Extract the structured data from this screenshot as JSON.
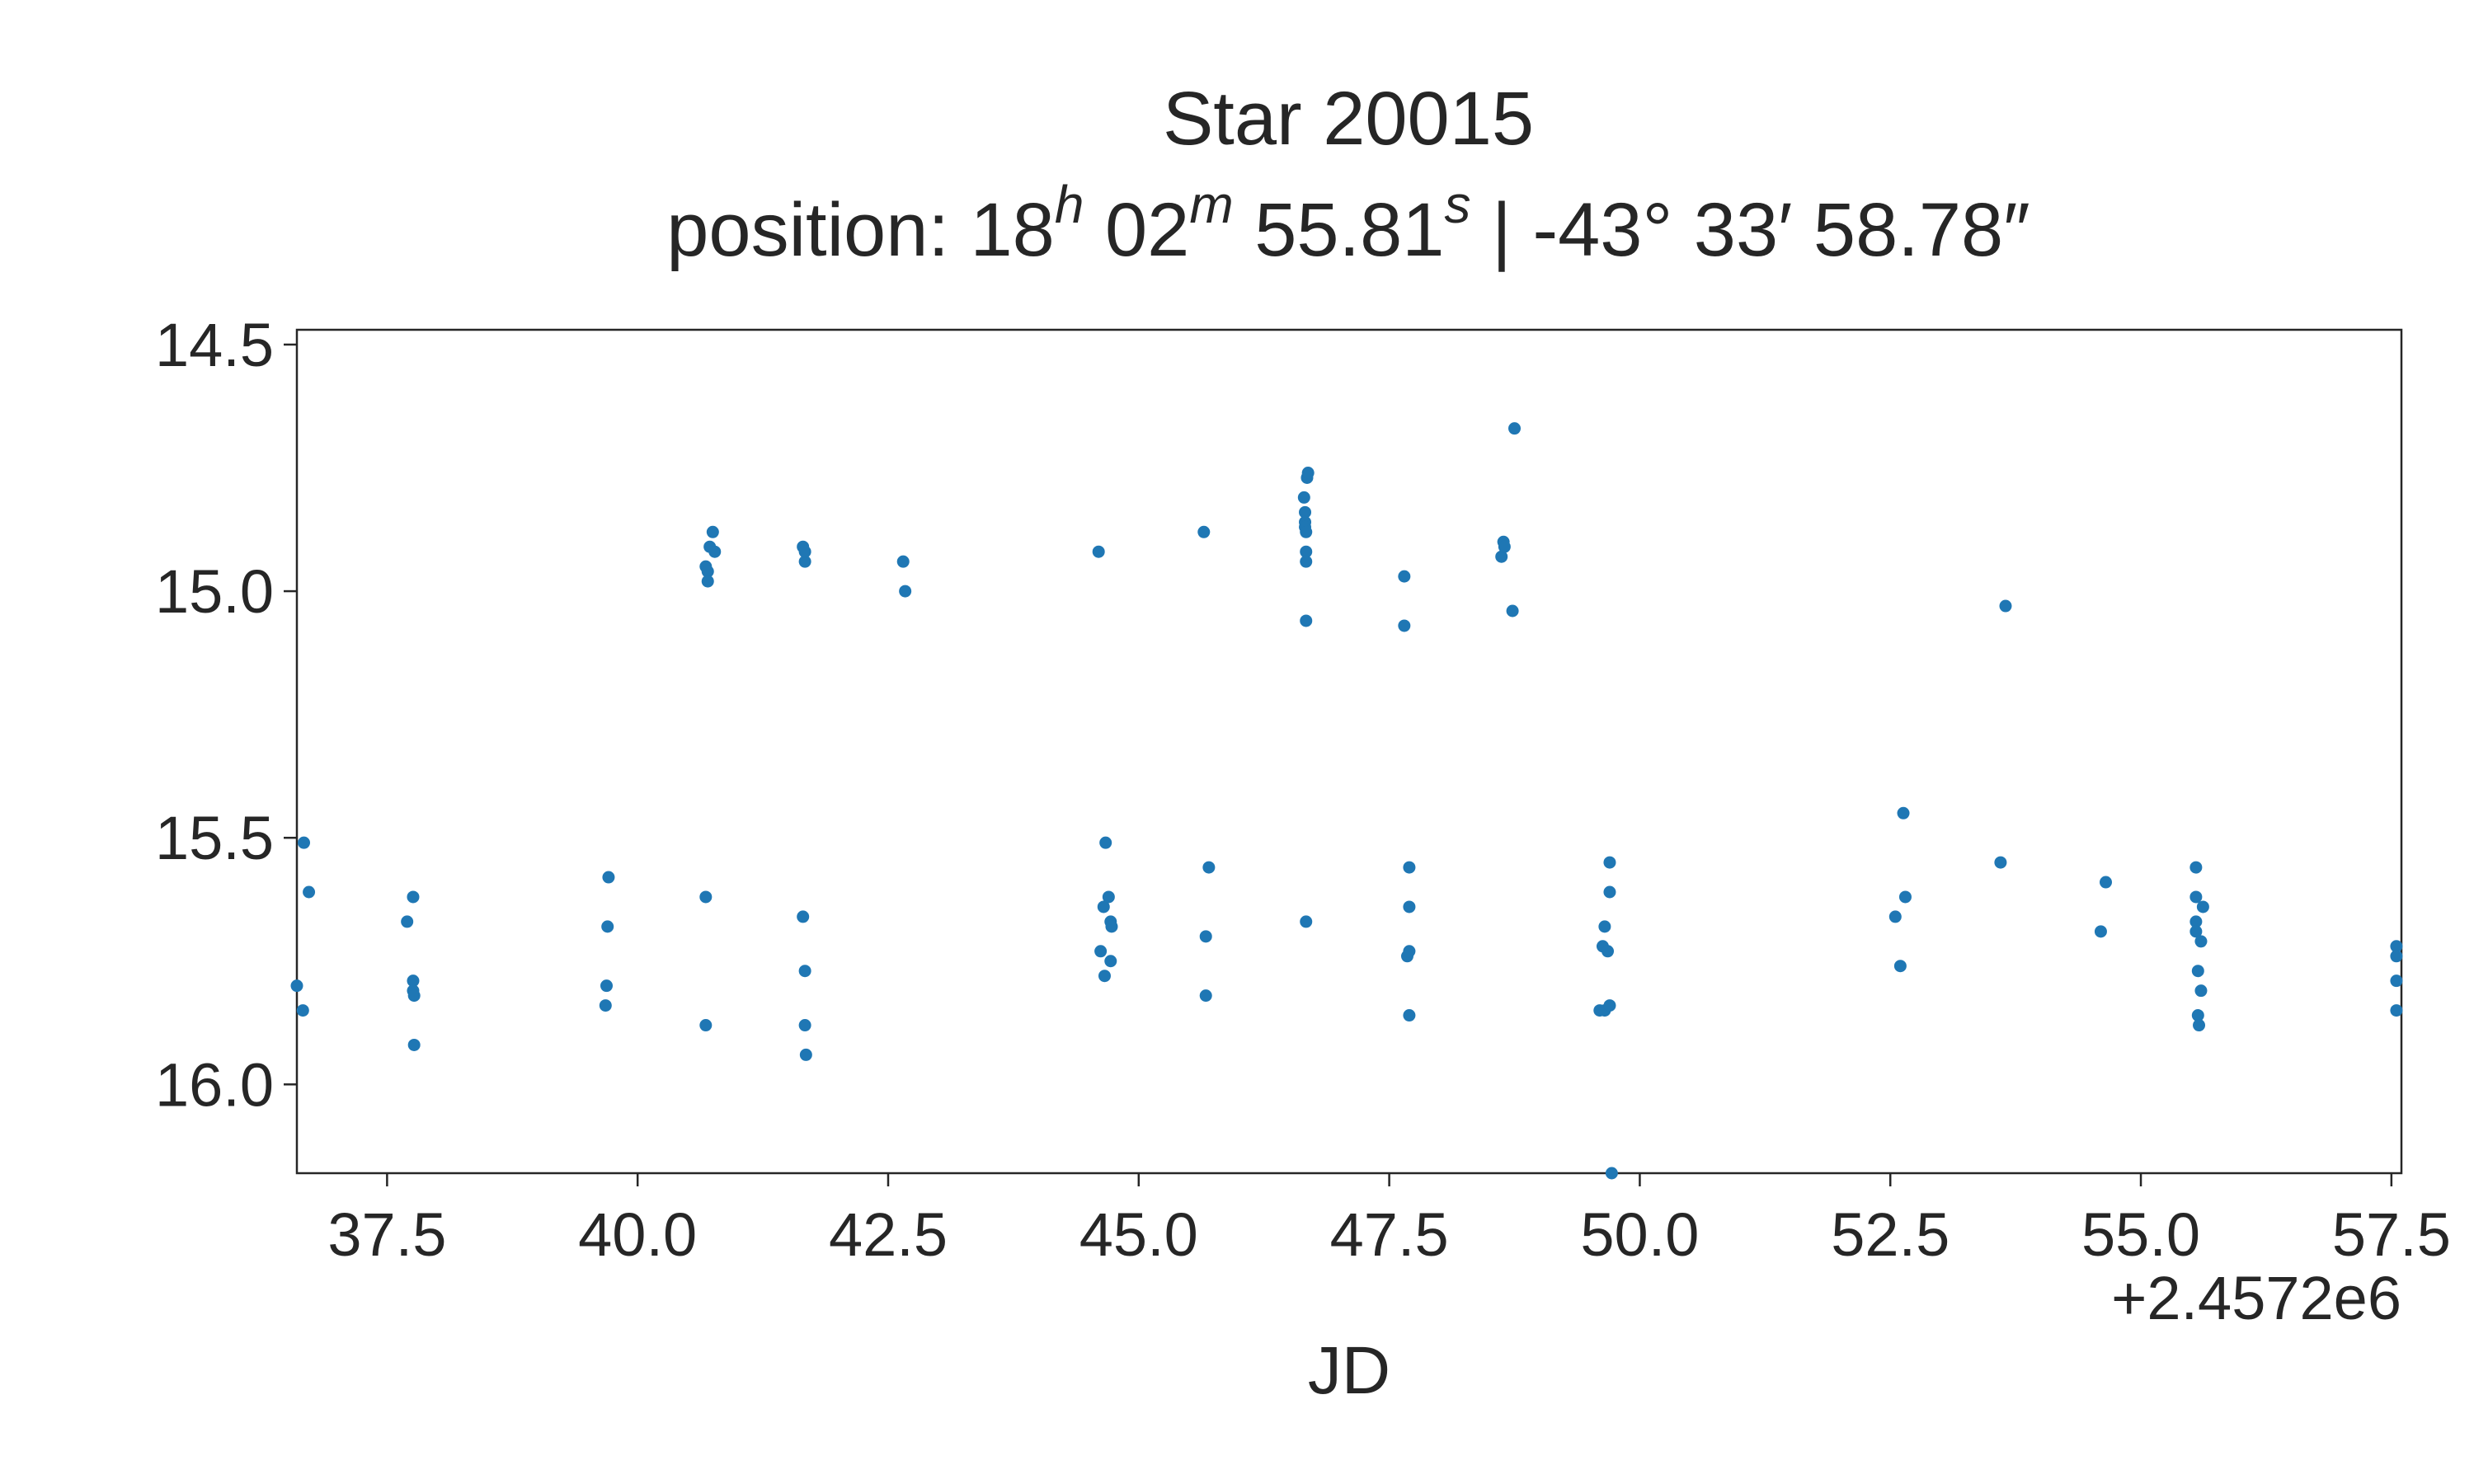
{
  "chart_data": {
    "type": "scatter",
    "title": "Star 20015",
    "subtitle": {
      "prefix": "position: ",
      "ra_h": "18",
      "ra_h_unit": "h",
      "ra_m": " 02",
      "ra_m_unit": "m",
      "ra_s": " 55.81",
      "ra_s_unit": "s",
      "dec": " | -43° 33′ 58.78″"
    },
    "xlabel": "JD",
    "x_offset_label": "+2.4572e6",
    "ylabel": "",
    "y_inverted": true,
    "xlim": [
      36.6,
      57.6
    ],
    "ylim": [
      14.47,
      16.18
    ],
    "xticks": [
      37.5,
      40.0,
      42.5,
      45.0,
      47.5,
      50.0,
      52.5,
      55.0,
      57.5
    ],
    "xtick_labels": [
      "37.5",
      "40.0",
      "42.5",
      "45.0",
      "47.5",
      "50.0",
      "52.5",
      "55.0",
      "57.5"
    ],
    "yticks": [
      14.5,
      15.0,
      15.5,
      16.0
    ],
    "ytick_labels": [
      "14.5",
      "15.0",
      "15.5",
      "16.0"
    ],
    "grid": false,
    "marker_color": "#1f77b4",
    "points": [
      [
        36.6,
        15.8
      ],
      [
        36.66,
        15.85
      ],
      [
        36.67,
        15.51
      ],
      [
        36.72,
        15.61
      ],
      [
        37.7,
        15.67
      ],
      [
        37.76,
        15.62
      ],
      [
        37.76,
        15.79
      ],
      [
        37.76,
        15.81
      ],
      [
        37.77,
        15.82
      ],
      [
        37.77,
        15.92
      ],
      [
        39.68,
        15.84
      ],
      [
        39.69,
        15.8
      ],
      [
        39.7,
        15.68
      ],
      [
        39.71,
        15.58
      ],
      [
        40.68,
        15.62
      ],
      [
        40.68,
        15.88
      ],
      [
        40.68,
        14.95
      ],
      [
        40.7,
        14.96
      ],
      [
        40.7,
        14.98
      ],
      [
        40.72,
        14.91
      ],
      [
        40.75,
        14.88
      ],
      [
        40.77,
        14.92
      ],
      [
        41.65,
        14.91
      ],
      [
        41.67,
        14.94
      ],
      [
        41.67,
        14.92
      ],
      [
        41.65,
        15.66
      ],
      [
        41.67,
        15.77
      ],
      [
        41.67,
        15.88
      ],
      [
        41.68,
        15.94
      ],
      [
        42.65,
        14.94
      ],
      [
        42.67,
        15.0
      ],
      [
        44.6,
        14.92
      ],
      [
        44.62,
        15.73
      ],
      [
        44.65,
        15.64
      ],
      [
        44.66,
        15.78
      ],
      [
        44.67,
        15.51
      ],
      [
        44.7,
        15.62
      ],
      [
        44.72,
        15.67
      ],
      [
        44.72,
        15.75
      ],
      [
        44.73,
        15.68
      ],
      [
        45.65,
        14.88
      ],
      [
        45.67,
        15.7
      ],
      [
        45.67,
        15.82
      ],
      [
        45.7,
        15.56
      ],
      [
        46.65,
        14.81
      ],
      [
        46.66,
        14.84
      ],
      [
        46.66,
        14.86
      ],
      [
        46.66,
        14.87
      ],
      [
        46.67,
        14.88
      ],
      [
        46.67,
        14.92
      ],
      [
        46.67,
        14.94
      ],
      [
        46.68,
        14.77
      ],
      [
        46.69,
        14.76
      ],
      [
        46.67,
        15.06
      ],
      [
        46.67,
        15.67
      ],
      [
        47.65,
        14.97
      ],
      [
        47.65,
        15.07
      ],
      [
        47.68,
        15.74
      ],
      [
        47.7,
        15.73
      ],
      [
        47.7,
        15.56
      ],
      [
        47.7,
        15.64
      ],
      [
        47.7,
        15.86
      ],
      [
        48.62,
        14.93
      ],
      [
        48.64,
        14.9
      ],
      [
        48.65,
        14.91
      ],
      [
        48.75,
        14.67
      ],
      [
        48.73,
        15.04
      ],
      [
        49.6,
        15.85
      ],
      [
        49.63,
        15.72
      ],
      [
        49.65,
        15.85
      ],
      [
        49.65,
        15.68
      ],
      [
        49.68,
        15.73
      ],
      [
        49.7,
        15.55
      ],
      [
        49.7,
        15.61
      ],
      [
        49.7,
        15.84
      ],
      [
        49.72,
        16.18
      ],
      [
        52.55,
        15.66
      ],
      [
        52.6,
        15.76
      ],
      [
        52.63,
        15.45
      ],
      [
        52.65,
        15.62
      ],
      [
        53.6,
        15.55
      ],
      [
        53.65,
        15.03
      ],
      [
        54.6,
        15.69
      ],
      [
        54.65,
        15.59
      ],
      [
        55.55,
        15.56
      ],
      [
        55.55,
        15.62
      ],
      [
        55.55,
        15.67
      ],
      [
        55.55,
        15.69
      ],
      [
        55.57,
        15.77
      ],
      [
        55.57,
        15.86
      ],
      [
        55.58,
        15.88
      ],
      [
        55.6,
        15.81
      ],
      [
        55.6,
        15.71
      ],
      [
        55.62,
        15.64
      ],
      [
        57.55,
        15.72
      ],
      [
        57.55,
        15.74
      ],
      [
        57.55,
        15.79
      ],
      [
        57.55,
        15.85
      ]
    ]
  }
}
